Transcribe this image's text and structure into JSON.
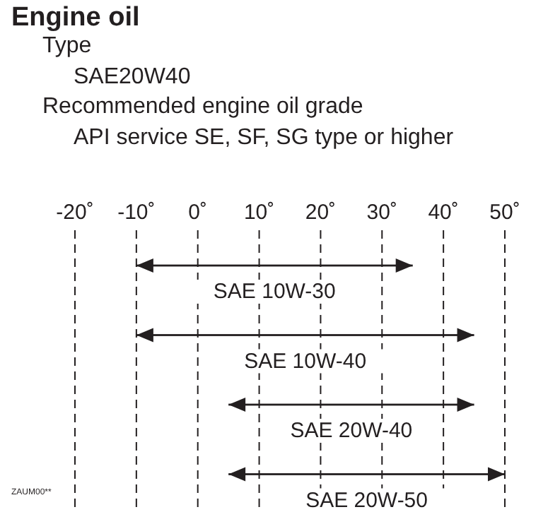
{
  "chart_data": {
    "type": "bar",
    "orientation": "horizontal",
    "title": "Engine oil",
    "annotations": [
      "Type",
      "SAE20W40",
      "Recommended engine oil grade",
      "API service SE, SF, SG type or higher",
      "ZAUM00**"
    ],
    "categories": [
      "SAE 10W-30",
      "SAE 10W-40",
      "SAE 20W-40",
      "SAE 20W-50"
    ],
    "base": [
      -10,
      -10,
      5,
      5
    ],
    "values": [
      45,
      55,
      40,
      45
    ],
    "color": "#231f20",
    "xlim": [
      -20,
      50
    ],
    "xticks": [
      {
        "value": -20,
        "label": "-20˚"
      },
      {
        "value": -10,
        "label": "-10˚"
      },
      {
        "value": 0,
        "label": "0˚"
      },
      {
        "value": 10,
        "label": "10˚"
      },
      {
        "value": 20,
        "label": "20˚"
      },
      {
        "value": 30,
        "label": "30˚"
      },
      {
        "value": 40,
        "label": "40˚"
      },
      {
        "value": 50,
        "label": "50˚"
      }
    ],
    "grid": "x"
  }
}
